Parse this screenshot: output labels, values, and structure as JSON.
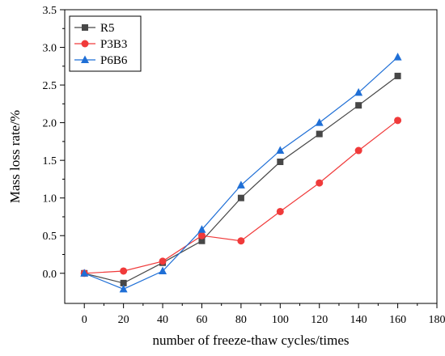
{
  "chart_data": {
    "type": "line",
    "title": "",
    "xlabel": "number of freeze-thaw cycles/times",
    "ylabel": "Mass loss rate/%",
    "xlim": [
      -10,
      180
    ],
    "ylim": [
      -0.4,
      3.5
    ],
    "x_ticks": [
      0,
      20,
      40,
      60,
      80,
      100,
      120,
      140,
      160,
      180
    ],
    "y_ticks": [
      0.0,
      0.5,
      1.0,
      1.5,
      2.0,
      2.5,
      3.0,
      3.5
    ],
    "x_tick_labels": [
      "0",
      "20",
      "40",
      "60",
      "80",
      "100",
      "120",
      "140",
      "160",
      "180"
    ],
    "y_tick_labels": [
      "0.0",
      "0.5",
      "1.0",
      "1.5",
      "2.0",
      "2.5",
      "3.0",
      "3.5"
    ],
    "grid": false,
    "legend_position": "top-left",
    "x": [
      0,
      20,
      40,
      60,
      80,
      100,
      120,
      140,
      160
    ],
    "series": [
      {
        "name": "R5",
        "marker": "square",
        "color": "#474747",
        "values": [
          0.0,
          -0.13,
          0.14,
          0.43,
          1.0,
          1.48,
          1.85,
          2.23,
          2.62
        ]
      },
      {
        "name": "P3B3",
        "marker": "circle",
        "color": "#f03a3a",
        "values": [
          0.0,
          0.03,
          0.16,
          0.5,
          0.43,
          0.82,
          1.2,
          1.63,
          2.03
        ]
      },
      {
        "name": "P6B6",
        "marker": "triangle",
        "color": "#1f6fd6",
        "values": [
          0.0,
          -0.21,
          0.03,
          0.58,
          1.17,
          1.63,
          2.0,
          2.4,
          2.87
        ]
      }
    ]
  }
}
